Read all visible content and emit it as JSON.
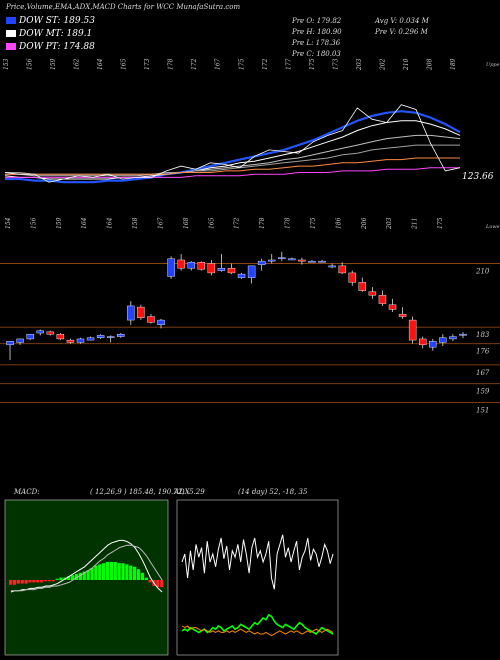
{
  "header": {
    "title": "Price,Volume,EMA,ADX,MACD Charts for WCC MunafaSutra.com",
    "stats": {
      "open": "Pre   O: 179.82",
      "high": "Pre   H: 180.90",
      "low": "Pre   L: 178.36",
      "close": "Pre   C: 180.03",
      "avg_vol": "Avg V: 0.034   M",
      "prev_vol": "Pre   V: 0.296   M"
    }
  },
  "legend": [
    {
      "label": "DOW ST: 189.53",
      "color": "#2244ff"
    },
    {
      "label": "DOW MT: 189.1",
      "color": "#ffffff"
    },
    {
      "label": "DOW PT: 174.88",
      "color": "#ff44ff"
    }
  ],
  "colors": {
    "up": "#2244ff",
    "down": "#ff1111",
    "grid": "#8b4513",
    "macd_hist": "#00ff00",
    "macd_neg": "#ff2222",
    "adx_green": "#00ff00",
    "adx_orange": "#ff8800"
  },
  "chart_data": [
    {
      "type": "line",
      "name": "ema-panel",
      "top_labels": [
        "153",
        "156",
        "159",
        "162",
        "164",
        "165",
        "173",
        "178",
        "172",
        "167",
        "175",
        "172",
        "177",
        "175",
        "173",
        "203",
        "202",
        "210",
        "208",
        "189"
      ],
      "top_right_label": "Upper",
      "price_label": "123.66",
      "series": [
        {
          "color": "#2255ff",
          "values": [
            178,
            178,
            177,
            177,
            176,
            176,
            176,
            177,
            177,
            178,
            179,
            181,
            182,
            184,
            186,
            188,
            190,
            192,
            194,
            196,
            199,
            202,
            206,
            210,
            214,
            217,
            219,
            220,
            219,
            216,
            212,
            207
          ]
        },
        {
          "color": "#ffffff",
          "values": [
            180,
            179,
            179,
            178,
            178,
            178,
            178,
            178,
            179,
            179,
            180,
            181,
            182,
            183,
            185,
            186,
            188,
            189,
            191,
            193,
            195,
            198,
            201,
            204,
            208,
            211,
            213,
            214,
            214,
            212,
            209,
            205
          ]
        },
        {
          "color": "#c0c0c0",
          "values": [
            181,
            181,
            180,
            180,
            180,
            180,
            180,
            180,
            180,
            180,
            181,
            181,
            182,
            183,
            184,
            185,
            186,
            187,
            188,
            190,
            191,
            193,
            195,
            197,
            199,
            201,
            203,
            204,
            205,
            205,
            204,
            203
          ]
        },
        {
          "color": "#a0a0a0",
          "values": [
            182,
            182,
            181,
            181,
            181,
            181,
            181,
            181,
            181,
            181,
            181,
            182,
            182,
            183,
            183,
            184,
            185,
            186,
            187,
            188,
            189,
            190,
            191,
            193,
            194,
            196,
            197,
            198,
            199,
            199,
            199,
            199
          ]
        },
        {
          "color": "#ff8844",
          "values": [
            181,
            181,
            181,
            181,
            181,
            181,
            181,
            181,
            181,
            181,
            181,
            181,
            182,
            182,
            182,
            183,
            183,
            184,
            184,
            185,
            186,
            186,
            187,
            188,
            188,
            189,
            190,
            190,
            191,
            191,
            191,
            191
          ]
        },
        {
          "color": "#ff44ff",
          "values": [
            179,
            179,
            179,
            179,
            179,
            179,
            179,
            179,
            179,
            179,
            179,
            179,
            179,
            180,
            180,
            180,
            180,
            181,
            181,
            181,
            182,
            182,
            182,
            183,
            183,
            183,
            184,
            184,
            184,
            185,
            185,
            185
          ]
        },
        {
          "color": "#ffffff",
          "values": [
            182,
            181,
            181,
            176,
            178,
            180,
            179,
            181,
            178,
            179,
            179,
            183,
            186,
            184,
            188,
            187,
            185,
            192,
            196,
            195,
            194,
            201,
            205,
            208,
            222,
            215,
            213,
            224,
            221,
            200,
            183,
            185
          ]
        }
      ],
      "y_range": [
        165,
        230
      ]
    },
    {
      "type": "candlestick",
      "name": "price-panel",
      "top_labels": [
        "154",
        "156",
        "159",
        "164",
        "164",
        "158",
        "167",
        "168",
        "165",
        "172",
        "178",
        "178",
        "175",
        "186",
        "206",
        "203",
        "211",
        "175"
      ],
      "top_right_label": "Lower",
      "y_ticks": [
        210,
        183,
        176,
        167,
        159,
        151
      ],
      "y_range": [
        147,
        217
      ],
      "candles": [
        {
          "o": 175.5,
          "h": 177.0,
          "l": 169.0,
          "c": 177.0
        },
        {
          "o": 176.5,
          "h": 178.0,
          "l": 175.5,
          "c": 178.0
        },
        {
          "o": 178.0,
          "h": 180.0,
          "l": 177.5,
          "c": 180.0
        },
        {
          "o": 180.5,
          "h": 182.0,
          "l": 179.5,
          "c": 181.5
        },
        {
          "o": 181.0,
          "h": 181.5,
          "l": 179.5,
          "c": 180.0
        },
        {
          "o": 180.0,
          "h": 180.5,
          "l": 177.5,
          "c": 178.0
        },
        {
          "o": 177.5,
          "h": 178.0,
          "l": 176.0,
          "c": 176.5
        },
        {
          "o": 176.5,
          "h": 178.5,
          "l": 176.0,
          "c": 178.0
        },
        {
          "o": 177.5,
          "h": 179.0,
          "l": 177.5,
          "c": 178.5
        },
        {
          "o": 178.5,
          "h": 180.0,
          "l": 178.0,
          "c": 179.5
        },
        {
          "o": 178.5,
          "h": 179.5,
          "l": 176.5,
          "c": 179.0
        },
        {
          "o": 179.0,
          "h": 180.5,
          "l": 178.5,
          "c": 180.0
        },
        {
          "o": 186.0,
          "h": 194.0,
          "l": 184.0,
          "c": 192.0
        },
        {
          "o": 191.5,
          "h": 192.5,
          "l": 186.0,
          "c": 187.0
        },
        {
          "o": 187.5,
          "h": 188.5,
          "l": 184.5,
          "c": 185.0
        },
        {
          "o": 184.0,
          "h": 186.5,
          "l": 182.5,
          "c": 186.0
        },
        {
          "o": 204.5,
          "h": 213.0,
          "l": 203.5,
          "c": 212.0
        },
        {
          "o": 211.5,
          "h": 214.0,
          "l": 207.0,
          "c": 208.0
        },
        {
          "o": 208.0,
          "h": 211.0,
          "l": 207.0,
          "c": 210.5
        },
        {
          "o": 210.5,
          "h": 211.0,
          "l": 207.0,
          "c": 207.5
        },
        {
          "o": 210.0,
          "h": 211.5,
          "l": 205.0,
          "c": 206.0
        },
        {
          "o": 207.0,
          "h": 214.0,
          "l": 206.5,
          "c": 208.0
        },
        {
          "o": 208.0,
          "h": 210.0,
          "l": 205.5,
          "c": 206.0
        },
        {
          "o": 204.0,
          "h": 206.0,
          "l": 203.5,
          "c": 205.5
        },
        {
          "o": 204.0,
          "h": 209.0,
          "l": 201.5,
          "c": 209.0
        },
        {
          "o": 209.5,
          "h": 212.0,
          "l": 207.0,
          "c": 211.0
        },
        {
          "o": 211.5,
          "h": 214.0,
          "l": 210.0,
          "c": 211.5
        },
        {
          "o": 212.0,
          "h": 215.0,
          "l": 211.0,
          "c": 212.5
        },
        {
          "o": 212.0,
          "h": 212.5,
          "l": 211.5,
          "c": 212.0
        },
        {
          "o": 211.5,
          "h": 212.5,
          "l": 209.5,
          "c": 211.0
        },
        {
          "o": 211.0,
          "h": 211.5,
          "l": 210.5,
          "c": 211.0
        },
        {
          "o": 211.0,
          "h": 211.5,
          "l": 210.5,
          "c": 211.0
        },
        {
          "o": 209.0,
          "h": 210.0,
          "l": 208.0,
          "c": 209.0
        },
        {
          "o": 209.0,
          "h": 210.5,
          "l": 205.5,
          "c": 206.0
        },
        {
          "o": 206.0,
          "h": 207.0,
          "l": 200.5,
          "c": 202.0
        },
        {
          "o": 202.0,
          "h": 204.0,
          "l": 198.0,
          "c": 198.5
        },
        {
          "o": 198.0,
          "h": 200.0,
          "l": 195.0,
          "c": 196.5
        },
        {
          "o": 196.5,
          "h": 198.5,
          "l": 192.0,
          "c": 193.0
        },
        {
          "o": 192.5,
          "h": 195.0,
          "l": 189.5,
          "c": 190.5
        },
        {
          "o": 188.5,
          "h": 191.5,
          "l": 186.5,
          "c": 187.5
        },
        {
          "o": 186.0,
          "h": 187.5,
          "l": 176.0,
          "c": 177.5
        },
        {
          "o": 178.0,
          "h": 179.0,
          "l": 174.0,
          "c": 175.5
        },
        {
          "o": 174.5,
          "h": 178.0,
          "l": 173.0,
          "c": 177.0
        },
        {
          "o": 176.5,
          "h": 180.0,
          "l": 175.0,
          "c": 178.5
        },
        {
          "o": 178.0,
          "h": 180.0,
          "l": 177.0,
          "c": 179.0
        },
        {
          "o": 179.82,
          "h": 180.9,
          "l": 178.36,
          "c": 180.03
        }
      ]
    },
    {
      "type": "line",
      "name": "macd-panel",
      "label": "MACD:",
      "values_text": "( 12,26,9 ) 185.48,  190.72,  -5.29",
      "histogram": [
        -4,
        -4,
        -3,
        -3,
        -3,
        -2,
        -2,
        -2,
        -2,
        -1,
        -1,
        -1,
        1,
        2,
        2,
        3,
        4,
        5,
        6,
        7,
        8,
        10,
        12,
        13,
        14,
        15,
        15,
        15,
        14,
        14,
        13,
        12,
        11,
        9,
        6,
        2,
        -2,
        -5,
        -6,
        -6
      ],
      "macd": [
        -10,
        -9,
        -9,
        -8,
        -8,
        -7,
        -7,
        -6,
        -6,
        -5,
        -5,
        -4,
        -3,
        -1,
        1,
        3,
        5,
        7,
        9,
        11,
        14,
        17,
        20,
        23,
        26,
        29,
        31,
        32,
        33,
        33,
        32,
        30,
        27,
        22,
        16,
        9,
        2,
        -3,
        -7,
        -10
      ],
      "signal": [
        -9,
        -9,
        -9,
        -9,
        -8,
        -8,
        -8,
        -7,
        -7,
        -6,
        -6,
        -5,
        -5,
        -4,
        -3,
        -2,
        0,
        2,
        4,
        6,
        8,
        10,
        13,
        16,
        18,
        21,
        23,
        25,
        27,
        28,
        29,
        29,
        28,
        27,
        24,
        20,
        15,
        10,
        5,
        0
      ]
    },
    {
      "type": "line",
      "name": "adx-panel",
      "label": "ADX",
      "values_text": "(14  day) 52,  -18,  35",
      "series": [
        {
          "color": "#ffffff",
          "values": [
            55,
            60,
            45,
            62,
            50,
            66,
            58,
            64,
            48,
            68,
            55,
            60,
            52,
            63,
            70,
            57,
            65,
            50,
            62,
            58,
            66,
            55,
            69,
            60,
            48,
            64,
            70,
            58,
            62,
            55,
            60,
            68,
            45,
            38,
            60,
            66,
            72,
            58,
            64,
            55,
            62,
            68,
            50,
            58,
            62,
            70,
            56,
            63,
            60,
            52,
            58,
            66,
            62,
            54,
            60
          ]
        },
        {
          "color": "#00ff00",
          "values": [
            12,
            13,
            12,
            14,
            13,
            12,
            11,
            12,
            13,
            11,
            12,
            14,
            13,
            15,
            14,
            12,
            13,
            14,
            15,
            13,
            14,
            16,
            15,
            14,
            13,
            15,
            17,
            16,
            18,
            20,
            19,
            22,
            21,
            18,
            16,
            15,
            14,
            16,
            15,
            14,
            13,
            15,
            17,
            16,
            14,
            13,
            12,
            11,
            10,
            12,
            14,
            13,
            12,
            11,
            10
          ]
        },
        {
          "color": "#ff8800",
          "values": [
            15,
            14,
            15,
            13,
            14,
            14,
            13,
            12,
            13,
            12,
            11,
            12,
            11,
            12,
            11,
            11,
            12,
            11,
            12,
            11,
            12,
            13,
            12,
            11,
            12,
            11,
            10,
            11,
            10,
            10,
            11,
            10,
            9,
            10,
            11,
            12,
            11,
            10,
            11,
            12,
            11,
            12,
            11,
            10,
            11,
            12,
            11,
            12,
            13,
            12,
            11,
            12,
            13,
            12,
            11
          ]
        }
      ]
    }
  ]
}
